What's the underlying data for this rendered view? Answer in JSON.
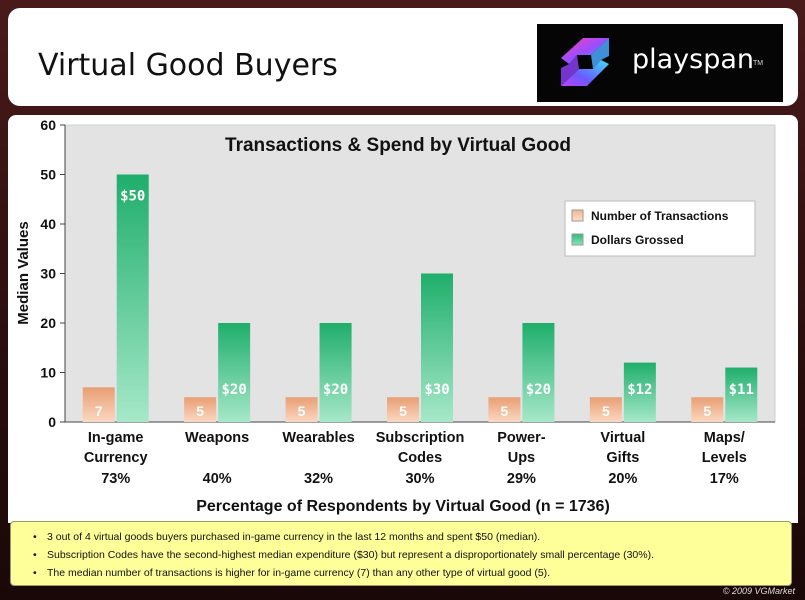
{
  "page": {
    "title": "Virtual Good Buyers",
    "logo_text": "playspan",
    "logo_tm": "TM",
    "copyright": "© 2009 VGMarket"
  },
  "colors": {
    "transactions": "#f3b48d",
    "dollars": "#2fbf7c",
    "plot_bg": "#e3e3e3",
    "notes_bg": "#ffff99"
  },
  "chart_data": {
    "type": "bar",
    "title": "Transactions & Spend by Virtual Good",
    "xlabel": "Percentage of Respondents by Virtual Good (n = 1736)",
    "ylabel": "Median Values",
    "ylim": [
      0,
      60
    ],
    "yticks": [
      0,
      10,
      20,
      30,
      40,
      50,
      60
    ],
    "categories": [
      [
        "In-game",
        "Currency"
      ],
      [
        "Weapons"
      ],
      [
        "Wearables"
      ],
      [
        "Subscription",
        "Codes"
      ],
      [
        "Power-",
        "Ups"
      ],
      [
        "Virtual",
        "Gifts"
      ],
      [
        "Maps/",
        "Levels"
      ]
    ],
    "percentages": [
      "73%",
      "40%",
      "32%",
      "30%",
      "29%",
      "20%",
      "17%"
    ],
    "legend_position": "right",
    "grid": false,
    "series": [
      {
        "name": "Number of Transactions",
        "values": [
          7,
          5,
          5,
          5,
          5,
          5,
          5
        ],
        "labels": [
          "7",
          "5",
          "5",
          "5",
          "5",
          "5",
          "5"
        ]
      },
      {
        "name": "Dollars Grossed",
        "values": [
          50,
          20,
          20,
          30,
          20,
          12,
          11
        ],
        "labels": [
          "$50",
          "$20",
          "$20",
          "$30",
          "$20",
          "$12",
          "$11"
        ]
      }
    ]
  },
  "notes": [
    "3 out of 4 virtual goods buyers purchased in-game currency in the last 12 months and spent $50 (median).",
    "Subscription Codes have the second-highest median expenditure ($30) but represent a disproportionately small percentage (30%).",
    "The median number of transactions is higher for in-game currency (7) than any other type of virtual good (5)."
  ]
}
